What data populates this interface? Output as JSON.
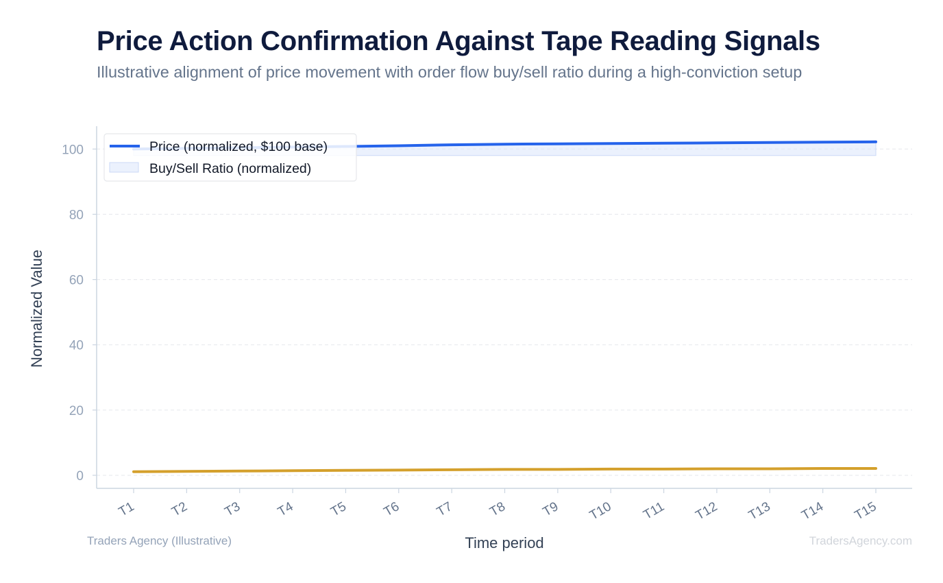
{
  "header": {
    "title": "Price Action Confirmation Against Tape Reading Signals",
    "subtitle": "Illustrative alignment of price movement with order flow buy/sell ratio during a high-conviction setup"
  },
  "footer": {
    "left": "Traders Agency (Illustrative)",
    "right": "TradersAgency.com"
  },
  "colors": {
    "price_line": "#2563eb",
    "ratio_band": "#dbe6fb",
    "ratio_line": "#d4a02c",
    "grid": "#e5e7eb",
    "axis": "#cbd5e1"
  },
  "chart_data": {
    "type": "line",
    "xlabel": "Time period",
    "ylabel": "Normalized Value",
    "ylim": [
      -4,
      107
    ],
    "yticks": [
      0,
      20,
      40,
      60,
      80,
      100
    ],
    "grid": true,
    "legend_position": "top-left",
    "categories": [
      "T1",
      "T2",
      "T3",
      "T4",
      "T5",
      "T6",
      "T7",
      "T8",
      "T9",
      "T10",
      "T11",
      "T12",
      "T13",
      "T14",
      "T15"
    ],
    "series": [
      {
        "name": "Price (normalized, $100 base)",
        "kind": "line",
        "color": "#2563eb",
        "values": [
          100.0,
          100.2,
          100.4,
          100.6,
          100.8,
          101.0,
          101.3,
          101.5,
          101.6,
          101.7,
          101.8,
          101.9,
          102.0,
          102.1,
          102.2
        ]
      },
      {
        "name": "Buy/Sell Ratio (normalized)",
        "kind": "band",
        "color": "#dbe6fb",
        "lower": [
          98.0,
          98.0,
          98.0,
          98.0,
          98.0,
          98.0,
          98.0,
          98.0,
          98.0,
          98.0,
          98.0,
          98.0,
          98.0,
          98.0,
          98.0
        ],
        "upper": [
          100.0,
          100.2,
          100.4,
          100.6,
          100.8,
          101.0,
          101.3,
          101.5,
          101.6,
          101.7,
          101.8,
          101.9,
          102.0,
          102.1,
          102.2
        ]
      },
      {
        "kind": "line",
        "color": "#d4a02c",
        "values": [
          1.1,
          1.2,
          1.3,
          1.4,
          1.5,
          1.6,
          1.7,
          1.8,
          1.8,
          1.9,
          1.9,
          2.0,
          2.0,
          2.1,
          2.1
        ]
      }
    ]
  }
}
